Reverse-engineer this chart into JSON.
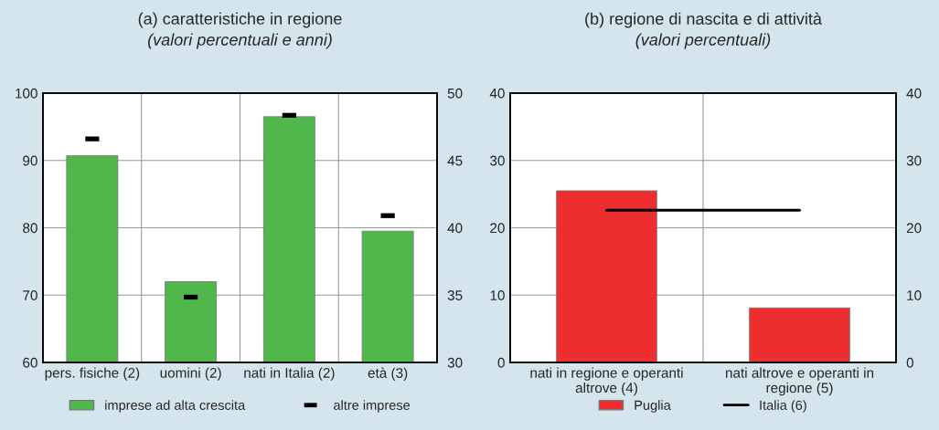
{
  "chart_data": [
    {
      "type": "bar",
      "title": "(a) caratteristiche in regione",
      "subtitle": "(valori percentuali e anni)",
      "categories": [
        "pers. fisiche (2)",
        "uomini (2)",
        "nati in Italia (2)",
        "età (3)"
      ],
      "series": [
        {
          "name": "imprese ad alta crescita",
          "color": "#50b84b",
          "values": [
            90.7,
            72.0,
            96.5,
            null
          ]
        },
        {
          "color": "#50b84b",
          "axis": "y2",
          "values": [
            null,
            null,
            null,
            39.75
          ]
        },
        {
          "name": "altre imprese",
          "type": "scatter",
          "marker": "square",
          "color": "#000000",
          "values": [
            93.2,
            69.7,
            96.7,
            null
          ]
        },
        {
          "type": "scatter",
          "marker": "square",
          "color": "#000000",
          "axis": "y2",
          "values": [
            null,
            null,
            null,
            40.9
          ]
        }
      ],
      "ylim": [
        60,
        100
      ],
      "yticks": [
        60,
        70,
        80,
        90,
        100
      ],
      "y2lim": [
        30,
        50
      ],
      "y2ticks": [
        30,
        35,
        40,
        45,
        50
      ],
      "grid": true,
      "legend": "bottom"
    },
    {
      "type": "bar",
      "title": "(b) regione di nascita e di attività",
      "subtitle": "(valori percentuali)",
      "categories": [
        "nati in regione e operanti altrove (4)",
        "nati altrove e operanti in regione (5)"
      ],
      "series": [
        {
          "name": "Puglia",
          "color": "#ee2e2e",
          "values": [
            25.5,
            8.1
          ]
        },
        {
          "name": "Italia (6)",
          "type": "line",
          "marker": "none",
          "line_style": "solid",
          "color": "#000000",
          "values": [
            22.6,
            22.6
          ]
        }
      ],
      "ylim": [
        0,
        40
      ],
      "yticks": [
        0,
        10,
        20,
        30,
        40
      ],
      "y2lim": [
        0,
        40
      ],
      "y2ticks": [
        0,
        10,
        20,
        30,
        40
      ],
      "grid": true,
      "legend": "bottom"
    }
  ]
}
